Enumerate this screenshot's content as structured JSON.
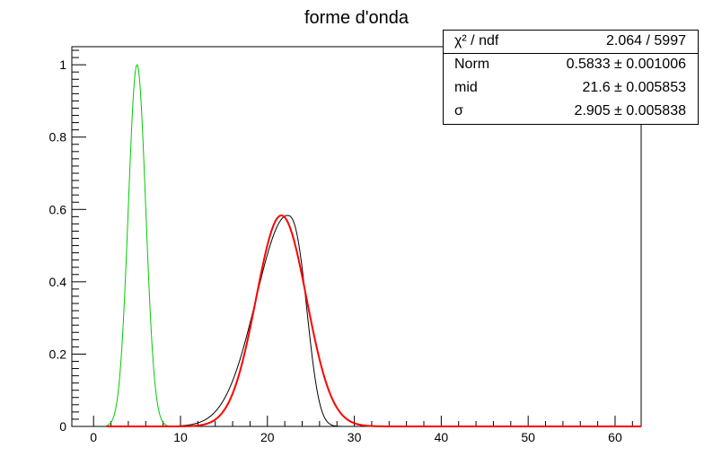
{
  "chart_data": {
    "type": "line",
    "title": "forme d'onda",
    "xlabel": "",
    "ylabel": "",
    "xlim": [
      -2.5,
      63
    ],
    "ylim": [
      0,
      1.05
    ],
    "x_ticks": [
      "0",
      "10",
      "20",
      "30",
      "40",
      "50",
      "60"
    ],
    "y_ticks": [
      "0",
      "0.2",
      "0.4",
      "0.6",
      "0.8",
      "1"
    ],
    "grid": false,
    "series": [
      {
        "color": "#00cc00",
        "shape": "gaussian",
        "amplitude": 1.0,
        "mean": 5.0,
        "sigma": 1.0,
        "x_start": 1.5,
        "x_end": 8.5
      },
      {
        "color": "#000000",
        "shape": "asymmetric-peak",
        "amplitude": 0.5833,
        "mean": 22.3,
        "x_start": 8.5,
        "x_end": 63
      },
      {
        "color": "#ff0000",
        "shape": "gaussian",
        "amplitude": 0.5833,
        "mean": 21.6,
        "sigma": 2.905,
        "x_start": 1.5,
        "x_end": 63
      }
    ],
    "stats": {
      "title_label": "χ² / ndf",
      "title_value": "2.064 / 5997",
      "rows": [
        {
          "label": "Norm",
          "value": "0.5833 ± 0.001006"
        },
        {
          "label": "mid",
          "value": "21.6 ± 0.005853"
        },
        {
          "label": "σ",
          "value": "2.905 ± 0.005838"
        }
      ]
    }
  }
}
